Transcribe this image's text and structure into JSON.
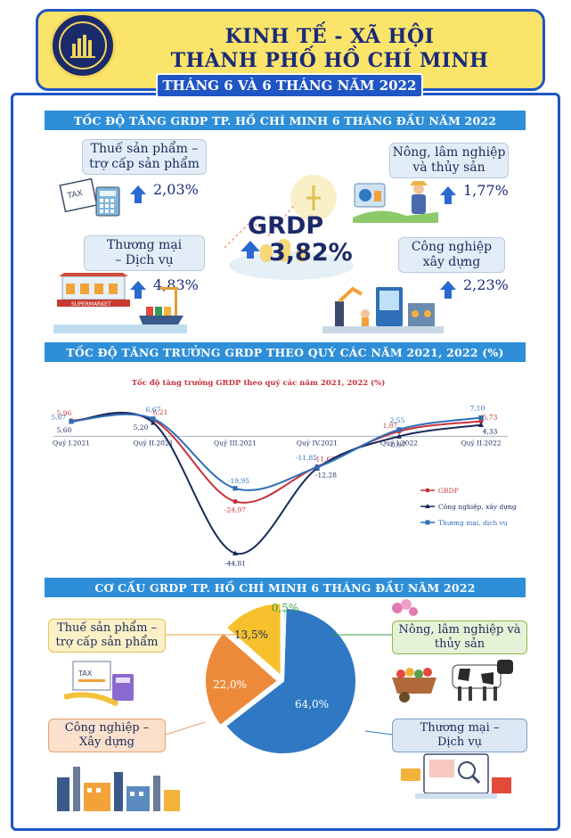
{
  "header": {
    "title_line1": "KINH TẾ - XÃ HỘI",
    "title_line2": "THÀNH PHỐ HỒ CHÍ MINH",
    "subtitle": "THÁNG 6 VÀ 6 THÁNG NĂM 2022"
  },
  "section1": {
    "title": "TỐC ĐỘ TĂNG GRDP TP. HỒ CHÍ MINH 6 THÁNG ĐẦU NĂM 2022",
    "grdp_label": "GRDP",
    "grdp_value": "3,82%",
    "items": [
      {
        "label_line1": "Thuế sản phẩm –",
        "label_line2": "trợ cấp sản phẩm",
        "value": "2,03%"
      },
      {
        "label_line1": "Nông, lâm nghiệp",
        "label_line2": "và thủy sản",
        "value": "1,77%"
      },
      {
        "label_line1": "Thương mại",
        "label_line2": "– Dịch vụ",
        "value": "4,83%"
      },
      {
        "label_line1": "Công nghiệp",
        "label_line2": "xây dựng",
        "value": "2,23%"
      }
    ]
  },
  "section2": {
    "title": "TỐC ĐỘ TĂNG TRƯỞNG GRDP THEO QUÝ CÁC NĂM 2021, 2022 (%)"
  },
  "section3": {
    "title": "CƠ CẤU GRDP TP. HỒ CHÍ MINH 6 THÁNG ĐẦU NĂM 2022"
  },
  "chart_data": [
    {
      "type": "line",
      "title": "Tốc độ tăng trưởng GRDP theo quý các năm 2021, 2022 (%)",
      "categories": [
        "Quý I.2021",
        "Quý II.2021",
        "Quý III.2021",
        "Quý IV.2021",
        "Quý I.2022",
        "Quý II.2022"
      ],
      "series": [
        {
          "name": "GRDP",
          "color": "#c8323c",
          "values": [
            5.96,
            6.21,
            -24.97,
            -11.63,
            1.87,
            5.73
          ],
          "labels": [
            "5,96",
            "6,21",
            "-24,97",
            "-11,63",
            "1,87",
            "5,73"
          ]
        },
        {
          "name": "Công nghiệp, xây dựng",
          "color": "#1a2a5a",
          "values": [
            5.6,
            5.2,
            -44.81,
            -12.28,
            -0.07,
            4.33
          ],
          "labels": [
            "5,60",
            "5,20",
            "-44,81",
            "-12,28",
            "-0,07",
            "4,33"
          ]
        },
        {
          "name": "Thương mại, dịch vụ",
          "color": "#2e6fb8",
          "values": [
            5.67,
            6.67,
            -19.95,
            -11.85,
            2.55,
            7.1
          ],
          "labels": [
            "5,67",
            "6,67",
            "-19,95",
            "-11,85",
            "2,55",
            "7,10"
          ]
        }
      ],
      "ylim": [
        -48,
        10
      ],
      "legend": "right"
    },
    {
      "type": "pie",
      "slices": [
        {
          "name": "Thương mại – Dịch vụ",
          "value": 64.0,
          "label": "64,0%",
          "color": "#2f78c4"
        },
        {
          "name": "Công nghiệp – Xây dựng",
          "value": 22.0,
          "label": "22,0%",
          "color": "#ec8a3a"
        },
        {
          "name": "Thuế sản phẩm – trợ cấp sản phẩm",
          "value": 13.5,
          "label": "13,5%",
          "color": "#f6c12c"
        },
        {
          "name": "Nông, lâm nghiệp và thủy sản",
          "value": 0.5,
          "label": "0,5%",
          "color": "#3aa04a"
        }
      ],
      "cards": [
        {
          "line1": "Thuế sản phẩm –",
          "line2": "trợ cấp sản phẩm"
        },
        {
          "line1": "Nông, lâm nghiệp và",
          "line2": "thủy sản"
        },
        {
          "line1": "Công nghiệp –",
          "line2": "Xây dựng"
        },
        {
          "line1": "Thương mại –",
          "line2": "Dịch vụ"
        }
      ]
    }
  ]
}
